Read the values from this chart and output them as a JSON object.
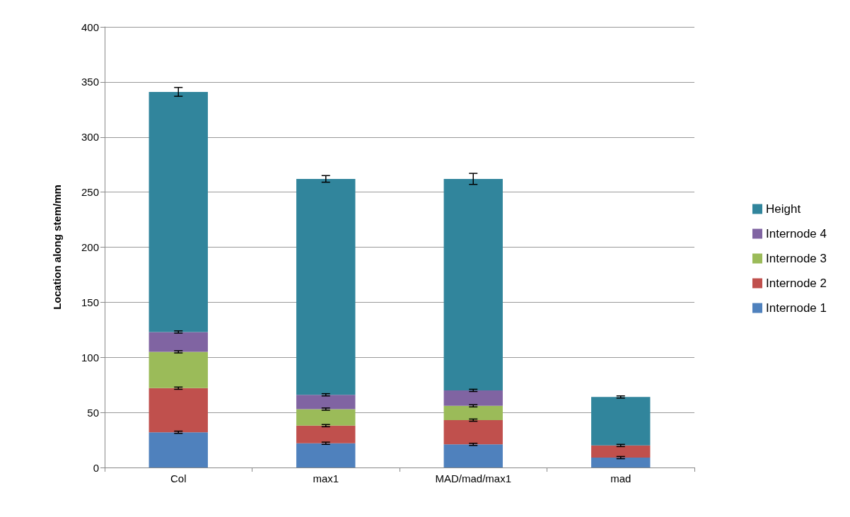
{
  "chart_data": {
    "type": "bar",
    "stacked": true,
    "ylabel": "Location along stem/mm",
    "categories": [
      "Col",
      "max1",
      "MAD/mad/max1",
      "mad"
    ],
    "series": [
      {
        "name": "Internode 1",
        "color": "#4f81bd",
        "values": [
          32,
          22,
          21,
          9
        ],
        "errors": [
          1,
          1,
          1,
          1
        ]
      },
      {
        "name": "Internode 2",
        "color": "#c0504d",
        "values": [
          40,
          16,
          22,
          11
        ],
        "errors": [
          1,
          1,
          1,
          1
        ]
      },
      {
        "name": "Internode 3",
        "color": "#9bbb59",
        "values": [
          33,
          15,
          13,
          null
        ],
        "errors": [
          1,
          1,
          1,
          null
        ]
      },
      {
        "name": "Internode 4",
        "color": "#8064a2",
        "values": [
          18,
          13,
          14,
          null
        ],
        "errors": [
          1,
          1,
          1,
          null
        ]
      },
      {
        "name": "Height",
        "color": "#31859c",
        "values": [
          218,
          196,
          192,
          44
        ],
        "errors": [
          4,
          3,
          5,
          1
        ]
      }
    ],
    "ylim": [
      0,
      400
    ],
    "yticks": [
      0,
      50,
      100,
      150,
      200,
      250,
      300,
      350,
      400
    ],
    "grid": "y",
    "legend": "right"
  }
}
